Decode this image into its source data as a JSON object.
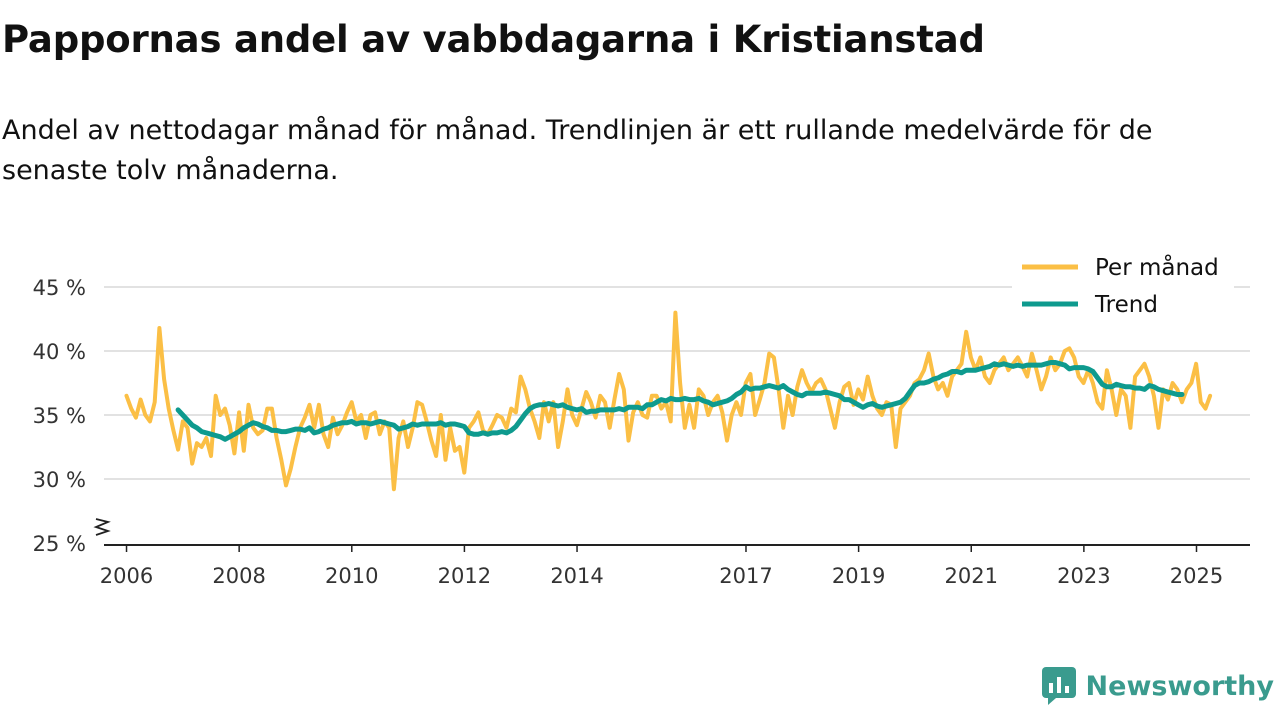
{
  "title": "Pappornas andel av vabbdagarna i Kristianstad",
  "subtitle": "Andel av nettodagar månad för månad. Trendlinjen är ett rullande medelvärde för de senaste tolv månaderna.",
  "brand": "Newsworthy",
  "colors": {
    "monthly": "#fbbf45",
    "trend": "#0e9a8e",
    "grid": "#d9d9d9",
    "axis": "#222222",
    "brand": "#3a9b8e"
  },
  "chart_data": {
    "type": "line",
    "title": "Pappornas andel av vabbdagarna i Kristianstad",
    "xlabel": "",
    "ylabel": "",
    "ylim": [
      25,
      45
    ],
    "xlim": [
      2005.6,
      2025.95
    ],
    "yticks": [
      25,
      30,
      35,
      40,
      45
    ],
    "ytick_labels": [
      "25 %",
      "30 %",
      "35 %",
      "40 %",
      "45 %"
    ],
    "xticks": [
      2006,
      2008,
      2010,
      2012,
      2014,
      2017,
      2019,
      2021,
      2023,
      2025
    ],
    "xtick_labels": [
      "2006",
      "2008",
      "2010",
      "2012",
      "2014",
      "2017",
      "2019",
      "2021",
      "2023",
      "2025"
    ],
    "axis_break": true,
    "legend": {
      "position": "top-right",
      "entries": [
        "Per månad",
        "Trend"
      ]
    },
    "series": [
      {
        "name": "Per månad",
        "x_start": 2006.0,
        "step": 0.0833,
        "values": [
          36.5,
          35.5,
          34.8,
          36.2,
          35.0,
          34.5,
          36.0,
          41.8,
          37.8,
          35.5,
          33.8,
          32.3,
          34.5,
          34.0,
          31.2,
          32.8,
          32.5,
          33.2,
          31.8,
          36.5,
          35.0,
          35.5,
          34.2,
          32.0,
          35.2,
          32.2,
          35.8,
          34.0,
          33.5,
          33.8,
          35.5,
          35.5,
          33.2,
          31.5,
          29.5,
          30.8,
          32.5,
          34.0,
          34.8,
          35.8,
          34.0,
          35.8,
          33.5,
          32.5,
          34.8,
          33.5,
          34.2,
          35.2,
          36.0,
          34.5,
          35.0,
          33.2,
          35.0,
          35.2,
          33.5,
          34.5,
          34.0,
          29.2,
          33.2,
          34.5,
          32.5,
          34.0,
          36.0,
          35.8,
          34.5,
          33.0,
          31.8,
          35.0,
          31.5,
          34.0,
          32.2,
          32.5,
          30.5,
          34.0,
          34.5,
          35.2,
          33.8,
          33.5,
          34.2,
          35.0,
          34.8,
          34.0,
          35.5,
          35.2,
          38.0,
          37.0,
          35.5,
          34.5,
          33.2,
          36.0,
          34.5,
          36.0,
          32.5,
          34.5,
          37.0,
          35.0,
          34.2,
          35.5,
          36.8,
          36.0,
          34.8,
          36.5,
          36.0,
          34.0,
          36.2,
          38.2,
          37.0,
          33.0,
          35.2,
          36.0,
          35.0,
          34.8,
          36.5,
          36.5,
          35.5,
          36.0,
          34.5,
          43.0,
          37.5,
          34.0,
          35.8,
          34.0,
          37.0,
          36.5,
          35.0,
          36.0,
          36.5,
          35.2,
          33.0,
          35.0,
          36.0,
          35.0,
          37.5,
          38.2,
          35.0,
          36.2,
          37.5,
          39.8,
          39.5,
          37.0,
          34.0,
          36.5,
          35.0,
          37.2,
          38.5,
          37.5,
          36.8,
          37.5,
          37.8,
          37.0,
          35.5,
          34.0,
          36.0,
          37.2,
          37.5,
          35.8,
          37.0,
          36.2,
          38.0,
          36.5,
          35.5,
          35.0,
          36.0,
          35.8,
          32.5,
          35.5,
          36.0,
          36.5,
          37.5,
          37.8,
          38.5,
          39.8,
          38.0,
          37.0,
          37.5,
          36.5,
          38.0,
          38.5,
          39.0,
          41.5,
          39.5,
          38.5,
          39.5,
          38.0,
          37.5,
          38.5,
          39.0,
          39.5,
          38.5,
          39.0,
          39.5,
          38.8,
          38.0,
          39.8,
          38.5,
          37.0,
          38.0,
          39.5,
          38.5,
          39.0,
          40.0,
          40.2,
          39.5,
          38.0,
          37.5,
          38.5,
          37.5,
          36.0,
          35.5,
          38.5,
          37.0,
          35.0,
          37.0,
          36.5,
          34.0,
          38.0,
          38.5,
          39.0,
          38.0,
          36.5,
          34.0,
          37.0,
          36.2,
          37.5,
          37.0,
          36.0,
          37.0,
          37.5,
          39.0,
          36.0,
          35.5,
          36.5
        ]
      },
      {
        "name": "Trend",
        "x_start": 2006.9167,
        "step": 0.0833,
        "values": [
          35.4,
          35.0,
          34.6,
          34.2,
          34.0,
          33.7,
          33.6,
          33.5,
          33.4,
          33.3,
          33.1,
          33.3,
          33.5,
          33.7,
          34.0,
          34.2,
          34.4,
          34.3,
          34.1,
          34.0,
          33.8,
          33.8,
          33.7,
          33.7,
          33.8,
          33.9,
          33.9,
          33.8,
          34.0,
          33.6,
          33.7,
          33.9,
          34.0,
          34.2,
          34.3,
          34.4,
          34.4,
          34.5,
          34.3,
          34.4,
          34.4,
          34.3,
          34.4,
          34.5,
          34.4,
          34.3,
          34.2,
          33.9,
          34.0,
          34.1,
          34.3,
          34.2,
          34.3,
          34.3,
          34.3,
          34.3,
          34.4,
          34.2,
          34.3,
          34.3,
          34.2,
          34.1,
          33.6,
          33.5,
          33.5,
          33.6,
          33.5,
          33.6,
          33.6,
          33.7,
          33.6,
          33.8,
          34.1,
          34.6,
          35.1,
          35.5,
          35.7,
          35.8,
          35.8,
          35.9,
          35.8,
          35.7,
          35.8,
          35.6,
          35.5,
          35.4,
          35.5,
          35.2,
          35.3,
          35.3,
          35.4,
          35.4,
          35.4,
          35.4,
          35.5,
          35.4,
          35.6,
          35.6,
          35.6,
          35.5,
          35.8,
          35.8,
          36.0,
          36.2,
          36.1,
          36.3,
          36.2,
          36.2,
          36.3,
          36.2,
          36.2,
          36.3,
          36.1,
          36.0,
          35.8,
          35.9,
          36.0,
          36.1,
          36.3,
          36.6,
          36.8,
          37.2,
          37.0,
          37.1,
          37.1,
          37.2,
          37.3,
          37.2,
          37.1,
          37.3,
          37.0,
          36.8,
          36.6,
          36.5,
          36.7,
          36.7,
          36.7,
          36.7,
          36.8,
          36.7,
          36.6,
          36.5,
          36.2,
          36.2,
          36.0,
          35.8,
          35.6,
          35.8,
          35.9,
          35.7,
          35.6,
          35.7,
          35.8,
          35.9,
          36.0,
          36.3,
          36.8,
          37.3,
          37.5,
          37.5,
          37.6,
          37.8,
          37.9,
          38.1,
          38.2,
          38.4,
          38.4,
          38.3,
          38.5,
          38.5,
          38.5,
          38.6,
          38.7,
          38.8,
          39.0,
          38.9,
          39.0,
          38.9,
          38.8,
          38.9,
          38.8,
          38.9,
          38.9,
          38.9,
          38.9,
          39.0,
          39.1,
          39.1,
          39.0,
          38.9,
          38.6,
          38.7,
          38.7,
          38.7,
          38.6,
          38.4,
          37.9,
          37.4,
          37.2,
          37.2,
          37.4,
          37.3,
          37.2,
          37.2,
          37.1,
          37.1,
          37.0,
          37.3,
          37.2,
          37.0,
          36.9,
          36.8,
          36.7,
          36.6,
          36.6
        ]
      }
    ]
  }
}
